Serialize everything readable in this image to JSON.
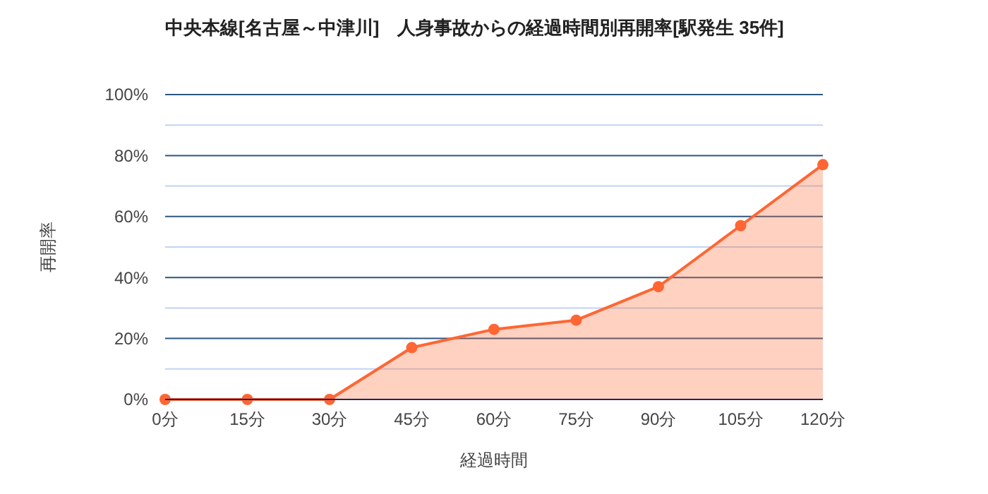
{
  "chart_data": {
    "type": "area",
    "title": "中央本線[名古屋～中津川]　人身事故からの経過時間別再開率[駅発生 35件]",
    "xlabel": "経過時間",
    "ylabel": "再開率",
    "categories": [
      "0分",
      "15分",
      "30分",
      "45分",
      "60分",
      "75分",
      "90分",
      "105分",
      "120分"
    ],
    "series": [
      {
        "color": "#ff6633",
        "values": [
          0,
          0,
          0,
          17,
          23,
          26,
          37,
          57,
          77
        ]
      }
    ],
    "ylim": [
      0,
      100
    ],
    "yticks": [
      {
        "value": 0,
        "label": "0%"
      },
      {
        "value": 10,
        "label": null
      },
      {
        "value": 20,
        "label": "20%"
      },
      {
        "value": 30,
        "label": null
      },
      {
        "value": 40,
        "label": "40%"
      },
      {
        "value": 50,
        "label": null
      },
      {
        "value": 60,
        "label": "60%"
      },
      {
        "value": 70,
        "label": null
      },
      {
        "value": 80,
        "label": "80%"
      },
      {
        "value": 90,
        "label": null
      },
      {
        "value": 100,
        "label": "100%"
      }
    ],
    "grid": true,
    "marker": "circle"
  }
}
